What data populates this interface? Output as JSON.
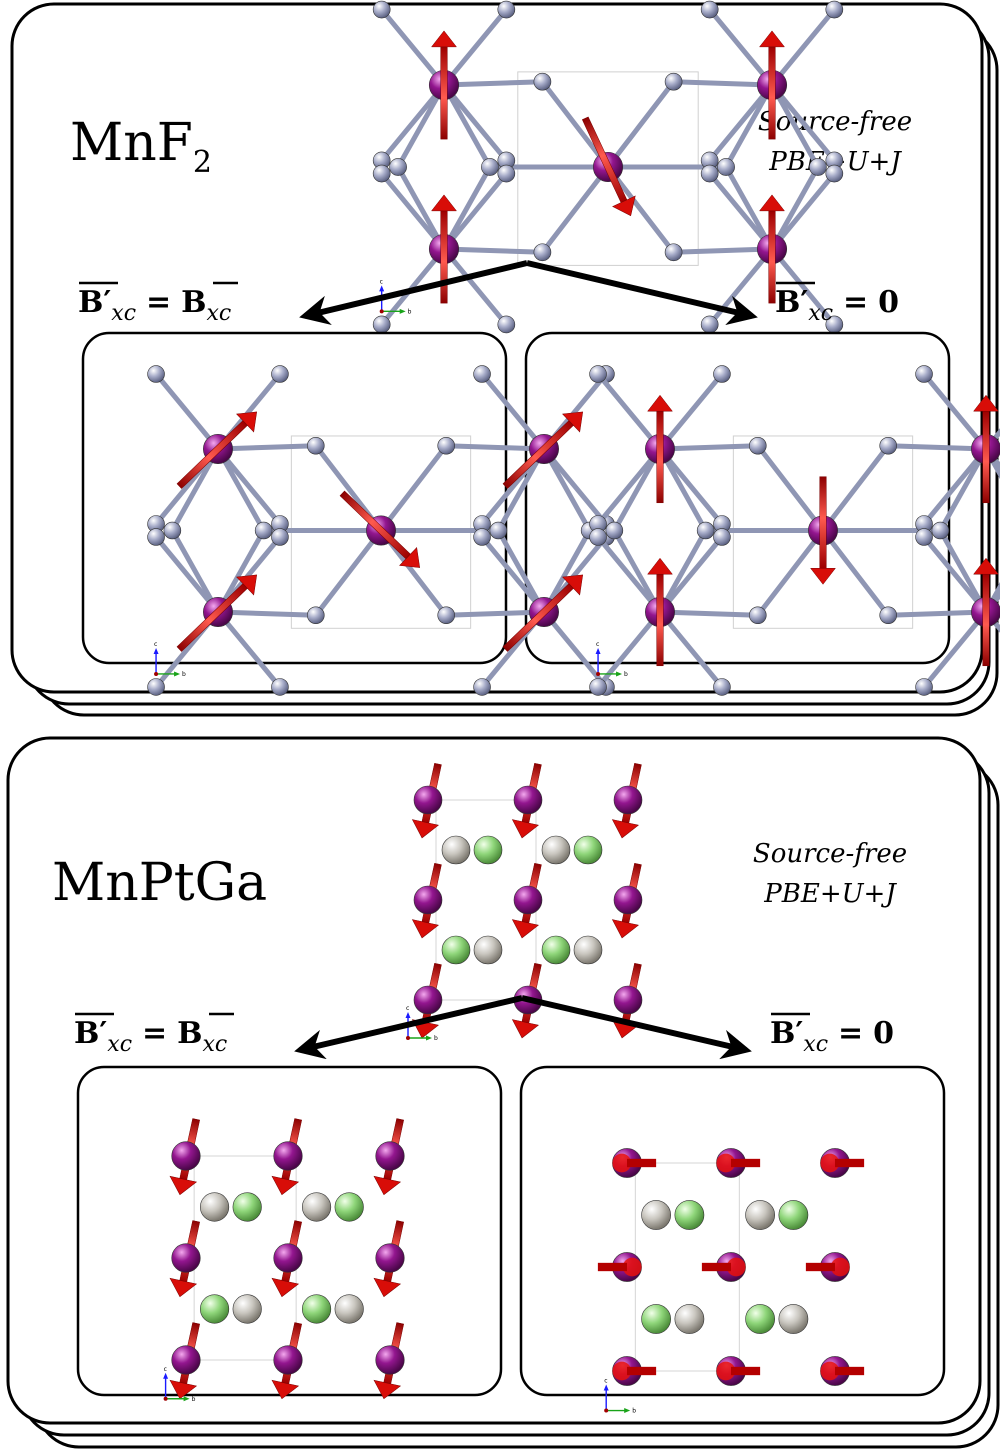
{
  "panels": [
    {
      "id": "mnf2",
      "material_main": "MnF",
      "material_sub": "2",
      "method_line1": "Source-free",
      "method_line2": "PBE+U+J",
      "left_eq_lhs": "B′",
      "left_eq_sub": "xc",
      "left_eq_rel": "=",
      "left_eq_rhs": "B",
      "left_eq_rhs_sub": "xc",
      "right_eq_lhs": "B′",
      "right_eq_sub": "xc",
      "right_eq_rel": "=",
      "right_eq_rhs": "0"
    },
    {
      "id": "mnptga",
      "material_main": "MnPtGa",
      "material_sub": "",
      "method_line1": "Source-free",
      "method_line2": "PBE+U+J",
      "left_eq_lhs": "B′",
      "left_eq_sub": "xc",
      "left_eq_rel": "=",
      "left_eq_rhs": "B",
      "left_eq_rhs_sub": "xc",
      "right_eq_lhs": "B′",
      "right_eq_sub": "xc",
      "right_eq_rel": "=",
      "right_eq_rhs": "0"
    }
  ],
  "axis_labels": {
    "vertical": "c",
    "horizontal": "b"
  },
  "colors": {
    "mn": "#93168f",
    "fluorine": "#a7acc9",
    "pt": "#c9c6bf",
    "ga": "#8fd67a",
    "moment": "#e8110c",
    "bond": "#8f96b4"
  }
}
